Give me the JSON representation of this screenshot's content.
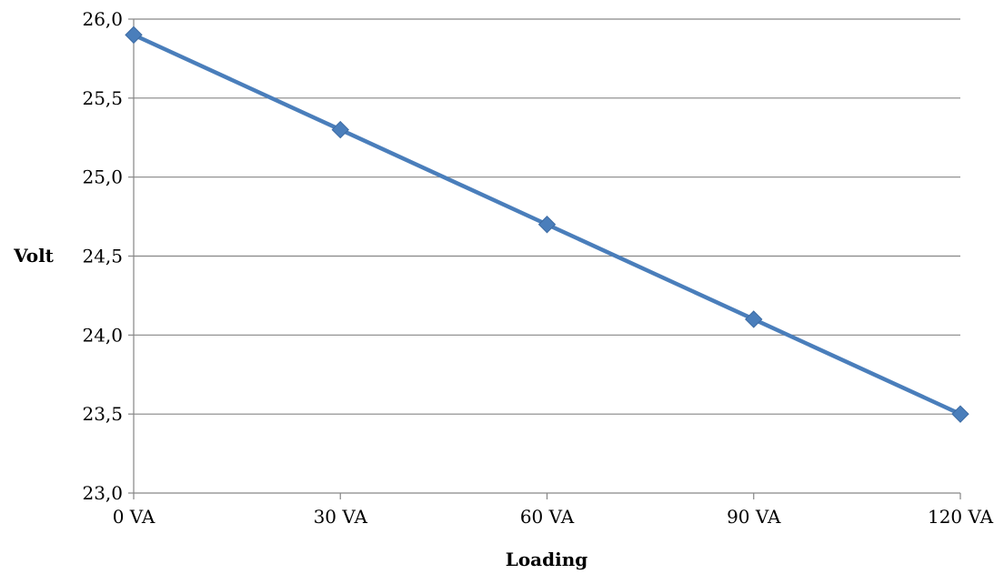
{
  "chart_data": {
    "type": "line",
    "categories": [
      "0 VA",
      "30 VA",
      "60 VA",
      "90 VA",
      "120 VA"
    ],
    "series": [
      {
        "values": [
          25.9,
          25.3,
          24.7,
          24.1,
          23.5
        ],
        "color": "#4a7ebb",
        "marker": "diamond"
      }
    ],
    "xlabel": "Loading",
    "ylabel": "Volt",
    "ylim": [
      23.0,
      26.0
    ],
    "yticks": [
      "23,0",
      "23,5",
      "24,0",
      "24,5",
      "25,0",
      "25,5",
      "26,0"
    ],
    "grid": "horizontal",
    "legend": "none"
  }
}
